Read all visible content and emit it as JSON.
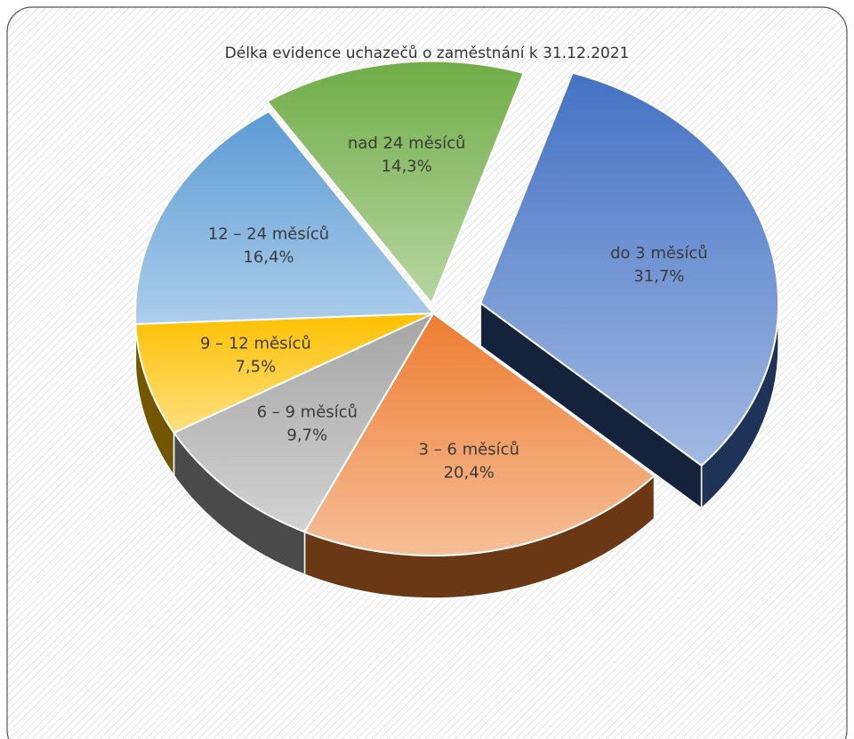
{
  "chart_data": {
    "type": "pie",
    "title": "Délka evidence uchazečů o zaměstnání k 31.12.2021",
    "categories": [
      "do 3 měsíců",
      "3 – 6 měsíců",
      "6 – 9 měsíců",
      "9 – 12 měsíců",
      "12 – 24 měsíců",
      "nad 24 měsíců"
    ],
    "values": [
      31.7,
      20.4,
      9.7,
      7.5,
      16.4,
      14.3
    ],
    "value_labels": [
      "31,7%",
      "20,4%",
      "9,7%",
      "7,5%",
      "16,4%",
      "14,3%"
    ],
    "colors": [
      "#4472c4",
      "#ed7d31",
      "#a5a5a5",
      "#ffc000",
      "#5b9bd5",
      "#70ad47"
    ]
  }
}
